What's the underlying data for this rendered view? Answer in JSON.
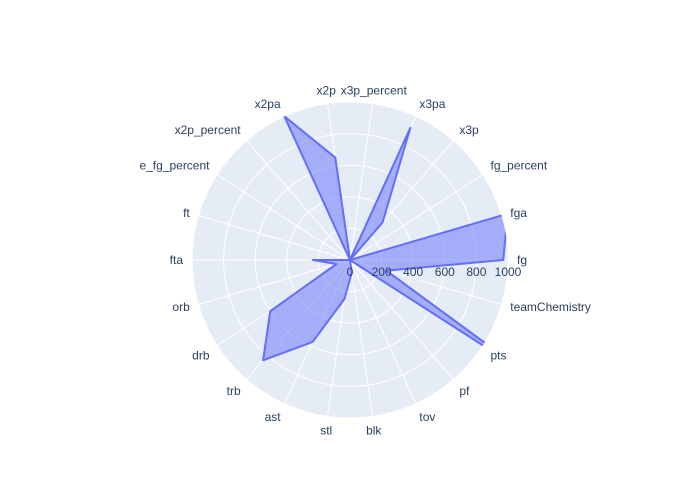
{
  "chart_data": {
    "type": "radar",
    "title": "",
    "radial_range": [
      0,
      1000
    ],
    "radial_ticks": [
      0,
      200,
      400,
      600,
      800,
      1000
    ],
    "angular_direction": "counterclockwise",
    "angular_start": "east",
    "grid": true,
    "legend": "none",
    "categories": [
      "fg",
      "fga",
      "fg_percent",
      "x3p",
      "x3pa",
      "x3p_percent",
      "x2p",
      "x2pa",
      "x2p_percent",
      "e_fg_percent",
      "ft",
      "fta",
      "orb",
      "drb",
      "trb",
      "ast",
      "stl",
      "blk",
      "tov",
      "pf",
      "pts",
      "teamChemistry"
    ],
    "series": [
      {
        "values": [
          970,
          1040,
          0.45,
          315,
          920,
          0.35,
          655,
          1000,
          0.55,
          0.5,
          0,
          235,
          90,
          600,
          840,
          570,
          250,
          80,
          0,
          0,
          1340,
          240
        ]
      }
    ]
  },
  "colors": {
    "plot_bg": "#e5ecf6",
    "grid": "#ffffff",
    "fill": "#636efa",
    "fill_opacity": 0.5,
    "text": "#2a3f5f"
  }
}
